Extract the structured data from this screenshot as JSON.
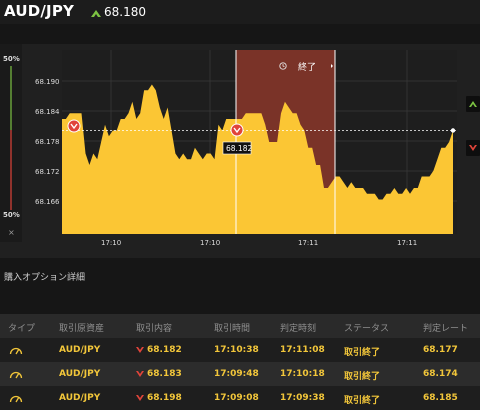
{
  "header": {
    "pair": "AUD/JPY",
    "rate": "68.180",
    "colors": {
      "up": "#7cc242",
      "down": "#e0443a",
      "accent": "#fbc634"
    }
  },
  "chart": {
    "pct_top": "50%",
    "pct_bottom": "50%",
    "close_symbol": "×",
    "y_ticks": [
      "68.190",
      "68.184",
      "68.178",
      "68.172",
      "68.166"
    ],
    "x_ticks": [
      "17:10",
      "17:10",
      "17:11",
      "17:11"
    ],
    "entry_label": "68.182",
    "end_label": "終了",
    "clock_icon": "clock-icon",
    "right_buttons": [
      "up-arrow-icon",
      "down-arrow-icon"
    ]
  },
  "chart_data": {
    "type": "area",
    "ylim": [
      68.162,
      68.194
    ],
    "grid": true,
    "current_rate": 68.18,
    "entry_rate": 68.182,
    "series": [
      {
        "color": "#fbc634",
        "values": [
          68.182,
          68.182,
          68.183,
          68.183,
          68.183,
          68.183,
          68.176,
          68.174,
          68.176,
          68.175,
          68.178,
          68.181,
          68.179,
          68.18,
          68.18,
          68.182,
          68.182,
          68.183,
          68.185,
          68.182,
          68.183,
          68.187,
          68.187,
          68.188,
          68.187,
          68.184,
          68.182,
          68.184,
          68.18,
          68.176,
          68.175,
          68.176,
          68.175,
          68.175,
          68.177,
          68.176,
          68.175,
          68.176,
          68.176,
          68.175,
          68.181,
          68.18,
          68.182,
          68.182,
          68.182,
          68.182,
          68.182,
          68.183,
          68.183,
          68.183,
          68.183,
          68.183,
          68.181,
          68.178,
          68.178,
          68.178,
          68.183,
          68.185,
          68.184,
          68.183,
          68.183,
          68.181,
          68.18,
          68.177,
          68.177,
          68.174,
          68.174,
          68.17,
          68.17,
          68.171,
          68.172,
          68.172,
          68.171,
          68.17,
          68.171,
          68.17,
          68.17,
          68.17,
          68.169,
          68.169,
          68.169,
          68.168,
          68.168,
          68.169,
          68.169,
          68.17,
          68.169,
          68.169,
          68.17,
          68.169,
          68.17,
          68.17,
          68.172,
          68.172,
          68.172,
          68.173,
          68.175,
          68.177,
          68.177,
          68.178,
          68.18
        ]
      }
    ]
  },
  "details": {
    "title": "購入オプション詳細",
    "columns": [
      "タイプ",
      "取引原資産",
      "取引内容",
      "取引時間",
      "判定時刻",
      "ステータス",
      "判定レート"
    ],
    "rows": [
      {
        "asset": "AUD/JPY",
        "content": "68.182",
        "time": "17:10:38",
        "judge": "17:11:08",
        "status": "取引終了",
        "rate": "68.177"
      },
      {
        "asset": "AUD/JPY",
        "content": "68.183",
        "time": "17:09:48",
        "judge": "17:10:18",
        "status": "取引終了",
        "rate": "68.174"
      },
      {
        "asset": "AUD/JPY",
        "content": "68.198",
        "time": "17:09:08",
        "judge": "17:09:38",
        "status": "取引終了",
        "rate": "68.185"
      }
    ]
  }
}
